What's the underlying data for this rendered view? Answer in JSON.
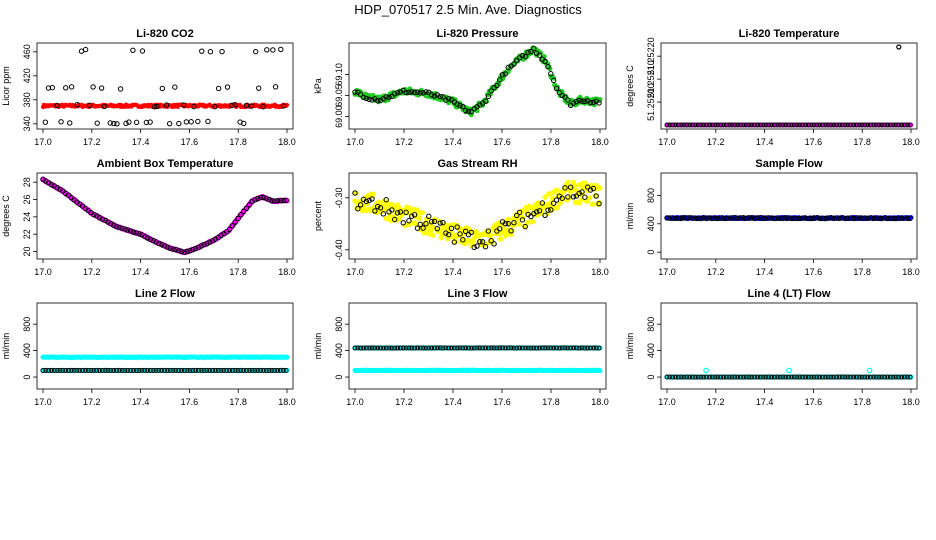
{
  "figure": {
    "title": "HDP_070517  2.5 Min. Ave. Diagnostics"
  },
  "colors": {
    "black": "#000000",
    "red": "#ff0000",
    "green": "#22cc22",
    "magenta": "#ff00ff",
    "yellow": "#ffff00",
    "blue": "#0000ff",
    "cyan": "#00ffff"
  },
  "chart_data": [
    {
      "id": "co2",
      "type": "scatter",
      "title": "Li-820 CO2",
      "ylabel": "Licor ppm",
      "xlim": [
        17.0,
        18.0
      ],
      "xticks": [
        "17.0",
        "17.2",
        "17.4",
        "17.6",
        "17.8",
        "18.0"
      ],
      "ylim": [
        338,
        468
      ],
      "yticks": [
        340,
        380,
        420,
        460
      ],
      "series": [
        {
          "name": "primary",
          "color": "#ff0000",
          "pattern": "flat",
          "level": 370,
          "jitter": 2,
          "size": 1.8
        },
        {
          "name": "overlay",
          "color": "#000000",
          "pattern": "multilevel",
          "levels": [
            462,
            400,
            370,
            342
          ],
          "size": 2.2
        }
      ]
    },
    {
      "id": "pressure",
      "type": "scatter",
      "title": "Li-820 Pressure",
      "ylabel": "kPa",
      "xlim": [
        17.0,
        18.0
      ],
      "xticks": [
        "17.0",
        "17.2",
        "17.4",
        "17.6",
        "17.8",
        "18.0"
      ],
      "ylim": [
        68.98,
        69.165
      ],
      "yticks": [
        "69.00",
        "69.05",
        "69.10"
      ],
      "series": [
        {
          "name": "primary",
          "color": "#22cc22",
          "pattern": "curve",
          "curve": [
            [
              17.0,
              69.06
            ],
            [
              17.05,
              69.045
            ],
            [
              17.1,
              69.04
            ],
            [
              17.15,
              69.05
            ],
            [
              17.2,
              69.06
            ],
            [
              17.3,
              69.055
            ],
            [
              17.4,
              69.035
            ],
            [
              17.47,
              69.01
            ],
            [
              17.52,
              69.03
            ],
            [
              17.57,
              69.07
            ],
            [
              17.62,
              69.11
            ],
            [
              17.68,
              69.14
            ],
            [
              17.73,
              69.16
            ],
            [
              17.78,
              69.13
            ],
            [
              17.83,
              69.06
            ],
            [
              17.88,
              69.03
            ],
            [
              17.93,
              69.04
            ],
            [
              17.98,
              69.035
            ]
          ],
          "jitter": 0.008,
          "size": 2.2
        },
        {
          "name": "overlay",
          "color": "#000000",
          "pattern": "curve",
          "curve": [
            [
              17.0,
              69.06
            ],
            [
              17.05,
              69.045
            ],
            [
              17.1,
              69.04
            ],
            [
              17.15,
              69.05
            ],
            [
              17.2,
              69.06
            ],
            [
              17.3,
              69.055
            ],
            [
              17.4,
              69.035
            ],
            [
              17.47,
              69.01
            ],
            [
              17.52,
              69.03
            ],
            [
              17.57,
              69.07
            ],
            [
              17.62,
              69.11
            ],
            [
              17.68,
              69.14
            ],
            [
              17.73,
              69.16
            ],
            [
              17.78,
              69.13
            ],
            [
              17.83,
              69.06
            ],
            [
              17.88,
              69.03
            ],
            [
              17.93,
              69.04
            ],
            [
              17.98,
              69.035
            ]
          ],
          "jitter": 0.004,
          "size": 2.2
        }
      ]
    },
    {
      "id": "temperature",
      "type": "scatter",
      "title": "Li-820 Temperature",
      "ylabel": "degrees C",
      "xlim": [
        17.0,
        18.0
      ],
      "xticks": [
        "17.0",
        "17.2",
        "17.4",
        "17.6",
        "17.8",
        "18.0"
      ],
      "ylim": [
        51.2519,
        51.25224
      ],
      "yticks": [
        "51.25200",
        "51.25210",
        "51.25220"
      ],
      "series": [
        {
          "name": "primary",
          "color": "#ff00ff",
          "pattern": "flat",
          "level": 51.2519,
          "jitter": 0,
          "size": 2
        },
        {
          "name": "overlay",
          "color": "#000000",
          "pattern": "flat",
          "level": 51.2519,
          "jitter": 0,
          "size": 2
        },
        {
          "name": "outlier",
          "color": "#000000",
          "pattern": "points",
          "points": [
            [
              17.95,
              51.25224
            ]
          ],
          "size": 2
        }
      ]
    },
    {
      "id": "boxtemp",
      "type": "scatter",
      "title": "Ambient Box Temperature",
      "ylabel": "degrees C",
      "xlim": [
        17.0,
        18.0
      ],
      "xticks": [
        "17.0",
        "17.2",
        "17.4",
        "17.6",
        "17.8",
        "18.0"
      ],
      "ylim": [
        19.6,
        28.6
      ],
      "yticks": [
        20,
        22,
        24,
        26,
        28
      ],
      "series": [
        {
          "name": "primary",
          "color": "#ff00ff",
          "pattern": "curve",
          "curve": [
            [
              17.0,
              28.3
            ],
            [
              17.08,
              27.0
            ],
            [
              17.15,
              25.5
            ],
            [
              17.2,
              24.4
            ],
            [
              17.3,
              22.9
            ],
            [
              17.4,
              22.0
            ],
            [
              17.47,
              21.0
            ],
            [
              17.52,
              20.4
            ],
            [
              17.58,
              19.9
            ],
            [
              17.63,
              20.4
            ],
            [
              17.7,
              21.3
            ],
            [
              17.76,
              22.4
            ],
            [
              17.81,
              24.2
            ],
            [
              17.86,
              25.9
            ],
            [
              17.9,
              26.3
            ],
            [
              17.94,
              25.8
            ],
            [
              18.0,
              25.9
            ]
          ],
          "jitter": 0.05,
          "size": 2.4
        },
        {
          "name": "overlay",
          "color": "#000000",
          "pattern": "curve",
          "curve": [
            [
              17.0,
              28.3
            ],
            [
              17.08,
              27.0
            ],
            [
              17.15,
              25.5
            ],
            [
              17.2,
              24.4
            ],
            [
              17.3,
              22.9
            ],
            [
              17.4,
              22.0
            ],
            [
              17.47,
              21.0
            ],
            [
              17.52,
              20.4
            ],
            [
              17.58,
              19.9
            ],
            [
              17.63,
              20.4
            ],
            [
              17.7,
              21.3
            ],
            [
              17.76,
              22.4
            ],
            [
              17.81,
              24.2
            ],
            [
              17.86,
              25.9
            ],
            [
              17.9,
              26.3
            ],
            [
              17.94,
              25.8
            ],
            [
              18.0,
              25.9
            ]
          ],
          "jitter": 0.03,
          "size": 2.2
        }
      ]
    },
    {
      "id": "rh",
      "type": "scatter",
      "title": "Gas Stream RH",
      "ylabel": "percent",
      "xlim": [
        17.0,
        18.0
      ],
      "xticks": [
        "17.0",
        "17.2",
        "17.4",
        "17.6",
        "17.8",
        "18.0"
      ],
      "ylim": [
        -0.41,
        -0.26
      ],
      "yticks": [
        "-0.40",
        "-0.30"
      ],
      "series": [
        {
          "name": "primary",
          "color": "#ffff00",
          "pattern": "curve",
          "curve": [
            [
              17.0,
              -0.305
            ],
            [
              17.1,
              -0.315
            ],
            [
              17.2,
              -0.335
            ],
            [
              17.3,
              -0.35
            ],
            [
              17.4,
              -0.37
            ],
            [
              17.48,
              -0.38
            ],
            [
              17.55,
              -0.375
            ],
            [
              17.65,
              -0.35
            ],
            [
              17.75,
              -0.325
            ],
            [
              17.85,
              -0.29
            ],
            [
              17.92,
              -0.29
            ],
            [
              18.0,
              -0.295
            ]
          ],
          "jitter": 0.02,
          "size": 2.4
        },
        {
          "name": "overlay",
          "color": "#000000",
          "pattern": "curve",
          "curve": [
            [
              17.0,
              -0.305
            ],
            [
              17.1,
              -0.315
            ],
            [
              17.2,
              -0.335
            ],
            [
              17.3,
              -0.35
            ],
            [
              17.4,
              -0.37
            ],
            [
              17.48,
              -0.38
            ],
            [
              17.55,
              -0.375
            ],
            [
              17.65,
              -0.35
            ],
            [
              17.75,
              -0.325
            ],
            [
              17.85,
              -0.29
            ],
            [
              17.92,
              -0.29
            ],
            [
              18.0,
              -0.295
            ]
          ],
          "jitter": 0.018,
          "size": 2.2
        }
      ]
    },
    {
      "id": "sampleflow",
      "type": "scatter",
      "title": "Sample Flow",
      "ylabel": "ml/min",
      "xlim": [
        17.0,
        18.0
      ],
      "xticks": [
        "17.0",
        "17.2",
        "17.4",
        "17.6",
        "17.8",
        "18.0"
      ],
      "ylim": [
        -40,
        1060
      ],
      "yticks": [
        0,
        400,
        800
      ],
      "series": [
        {
          "name": "primary",
          "color": "#0000ff",
          "pattern": "flat",
          "level": 480,
          "jitter": 8,
          "size": 2.2
        },
        {
          "name": "overlay",
          "color": "#000000",
          "pattern": "flat",
          "level": 480,
          "jitter": 6,
          "size": 2.2
        }
      ]
    },
    {
      "id": "line2",
      "type": "scatter",
      "title": "Line 2 Flow",
      "ylabel": "ml/min",
      "xlim": [
        17.0,
        18.0
      ],
      "xticks": [
        "17.0",
        "17.2",
        "17.4",
        "17.6",
        "17.8",
        "18.0"
      ],
      "ylim": [
        -120,
        1060
      ],
      "yticks": [
        0,
        400,
        800
      ],
      "series": [
        {
          "name": "primary",
          "color": "#00ffff",
          "pattern": "flat",
          "level": 300,
          "jitter": 4,
          "size": 2.2
        },
        {
          "name": "secondary",
          "color": "#00ffff",
          "pattern": "flat",
          "level": 100,
          "jitter": 2,
          "size": 2.2
        },
        {
          "name": "overlay",
          "color": "#000000",
          "pattern": "flat",
          "level": 100,
          "jitter": 1,
          "size": 2.0
        }
      ]
    },
    {
      "id": "line3",
      "type": "scatter",
      "title": "Line 3 Flow",
      "ylabel": "ml/min",
      "xlim": [
        17.0,
        18.0
      ],
      "xticks": [
        "17.0",
        "17.2",
        "17.4",
        "17.6",
        "17.8",
        "18.0"
      ],
      "ylim": [
        -120,
        1060
      ],
      "yticks": [
        0,
        400,
        800
      ],
      "series": [
        {
          "name": "primary",
          "color": "#00ffff",
          "pattern": "flat",
          "level": 100,
          "jitter": 4,
          "size": 2.2
        },
        {
          "name": "secondary",
          "color": "#00ffff",
          "pattern": "flat",
          "level": 440,
          "jitter": 3,
          "size": 2.2
        },
        {
          "name": "overlay",
          "color": "#000000",
          "pattern": "flat",
          "level": 440,
          "jitter": 2,
          "size": 2.0
        }
      ]
    },
    {
      "id": "line4",
      "type": "scatter",
      "title": "Line 4 (LT) Flow",
      "ylabel": "ml/min",
      "xlim": [
        17.0,
        18.0
      ],
      "xticks": [
        "17.0",
        "17.2",
        "17.4",
        "17.6",
        "17.8",
        "18.0"
      ],
      "ylim": [
        -120,
        1060
      ],
      "yticks": [
        0,
        400,
        800
      ],
      "series": [
        {
          "name": "primary",
          "color": "#00ffff",
          "pattern": "flat",
          "level": 0,
          "jitter": 1,
          "size": 2.2
        },
        {
          "name": "overlay",
          "color": "#000000",
          "pattern": "flat",
          "level": 0,
          "jitter": 1,
          "size": 2.0
        },
        {
          "name": "spikes",
          "color": "#00ffff",
          "pattern": "points",
          "points": [
            [
              17.16,
              100
            ],
            [
              17.5,
              100
            ],
            [
              17.83,
              100
            ]
          ],
          "size": 2.2
        }
      ]
    }
  ]
}
